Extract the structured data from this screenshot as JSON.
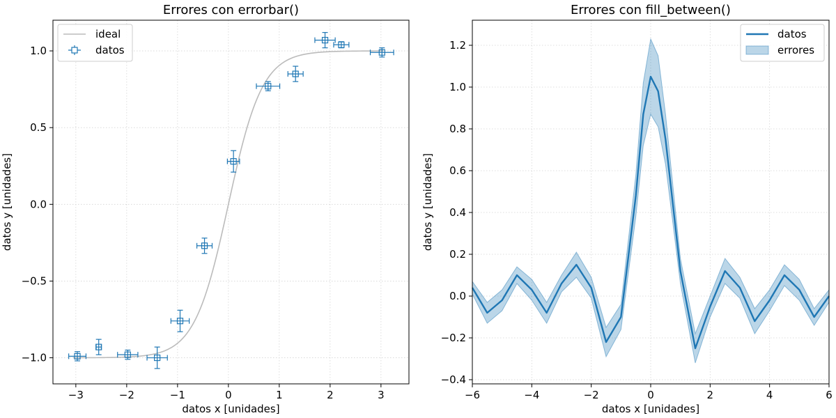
{
  "figure": {
    "colors": {
      "series": "#1f77b4",
      "ideal": "#bbbbbb",
      "grid": "#d4d4d4",
      "band": "#1f77b4"
    }
  },
  "chart_data": [
    {
      "type": "scatter",
      "title": "Errores con errorbar()",
      "xlabel": "datos x [unidades]",
      "ylabel": "datos y [unidades]",
      "xlim": [
        -3.45,
        3.55
      ],
      "ylim": [
        -1.17,
        1.2
      ],
      "xticks": [
        -3,
        -2,
        -1,
        0,
        1,
        2,
        3
      ],
      "xtick_labels": [
        "−3",
        "−2",
        "−1",
        "0",
        "1",
        "2",
        "3"
      ],
      "yticks": [
        -1.0,
        -0.5,
        0.0,
        0.5,
        1.0
      ],
      "ytick_labels": [
        "−1.0",
        "−0.5",
        "0.0",
        "0.5",
        "1.0"
      ],
      "grid": true,
      "legend": {
        "placement": "upper-left",
        "entries": [
          "ideal",
          "datos"
        ]
      },
      "ideal_curve": {
        "name": "ideal",
        "function": "tanh(1.5x)",
        "x_range": [
          -3.05,
          3.05
        ]
      },
      "series": [
        {
          "name": "datos",
          "marker": "square",
          "points": [
            {
              "x": -2.97,
              "y": -0.99,
              "xerr": 0.17,
              "yerr": 0.03
            },
            {
              "x": -2.55,
              "y": -0.93,
              "xerr": 0.05,
              "yerr": 0.05
            },
            {
              "x": -1.98,
              "y": -0.98,
              "xerr": 0.2,
              "yerr": 0.03
            },
            {
              "x": -1.4,
              "y": -1.0,
              "xerr": 0.2,
              "yerr": 0.07
            },
            {
              "x": -0.95,
              "y": -0.76,
              "xerr": 0.18,
              "yerr": 0.07
            },
            {
              "x": -0.47,
              "y": -0.27,
              "xerr": 0.15,
              "yerr": 0.05
            },
            {
              "x": 0.1,
              "y": 0.28,
              "xerr": 0.12,
              "yerr": 0.07
            },
            {
              "x": 0.78,
              "y": 0.77,
              "xerr": 0.23,
              "yerr": 0.03
            },
            {
              "x": 1.32,
              "y": 0.85,
              "xerr": 0.15,
              "yerr": 0.05
            },
            {
              "x": 1.9,
              "y": 1.07,
              "xerr": 0.2,
              "yerr": 0.05
            },
            {
              "x": 2.22,
              "y": 1.04,
              "xerr": 0.15,
              "yerr": 0.02
            },
            {
              "x": 3.02,
              "y": 0.99,
              "xerr": 0.23,
              "yerr": 0.03
            }
          ]
        }
      ]
    },
    {
      "type": "area",
      "title": "Errores con fill_between()",
      "xlabel": "datos x [unidades]",
      "ylabel": "datos y [unidades]",
      "xlim": [
        -6,
        6
      ],
      "ylim": [
        -0.42,
        1.32
      ],
      "xticks": [
        -6,
        -4,
        -2,
        0,
        2,
        4,
        6
      ],
      "xtick_labels": [
        "−6",
        "−4",
        "−2",
        "0",
        "2",
        "4",
        "6"
      ],
      "yticks": [
        -0.4,
        -0.2,
        0.0,
        0.2,
        0.4,
        0.6,
        0.8,
        1.0,
        1.2
      ],
      "ytick_labels": [
        "−0.4",
        "−0.2",
        "0.0",
        "0.2",
        "0.4",
        "0.6",
        "0.8",
        "1.0",
        "1.2"
      ],
      "grid": true,
      "legend": {
        "placement": "upper-right",
        "entries": [
          "datos",
          "errores"
        ]
      },
      "series": [
        {
          "name": "datos",
          "x": [
            -6.0,
            -5.5,
            -5.0,
            -4.5,
            -4.0,
            -3.5,
            -3.0,
            -2.5,
            -2.0,
            -1.5,
            -1.0,
            -0.5,
            -0.25,
            0.0,
            0.25,
            0.5,
            1.0,
            1.5,
            2.0,
            2.5,
            3.0,
            3.5,
            4.0,
            4.5,
            5.0,
            5.5,
            6.0
          ],
          "y": [
            0.04,
            -0.08,
            -0.02,
            0.1,
            0.03,
            -0.08,
            0.06,
            0.15,
            0.04,
            -0.22,
            -0.1,
            0.48,
            0.87,
            1.05,
            0.98,
            0.75,
            0.12,
            -0.25,
            -0.05,
            0.12,
            0.04,
            -0.12,
            -0.02,
            0.1,
            0.03,
            -0.1,
            0.0
          ],
          "err": [
            0.03,
            0.05,
            0.05,
            0.04,
            0.05,
            0.05,
            0.04,
            0.06,
            0.05,
            0.07,
            0.06,
            0.1,
            0.15,
            0.18,
            0.17,
            0.12,
            0.06,
            0.07,
            0.05,
            0.06,
            0.05,
            0.06,
            0.05,
            0.05,
            0.05,
            0.04,
            0.03
          ]
        },
        {
          "name": "errores"
        }
      ]
    }
  ]
}
